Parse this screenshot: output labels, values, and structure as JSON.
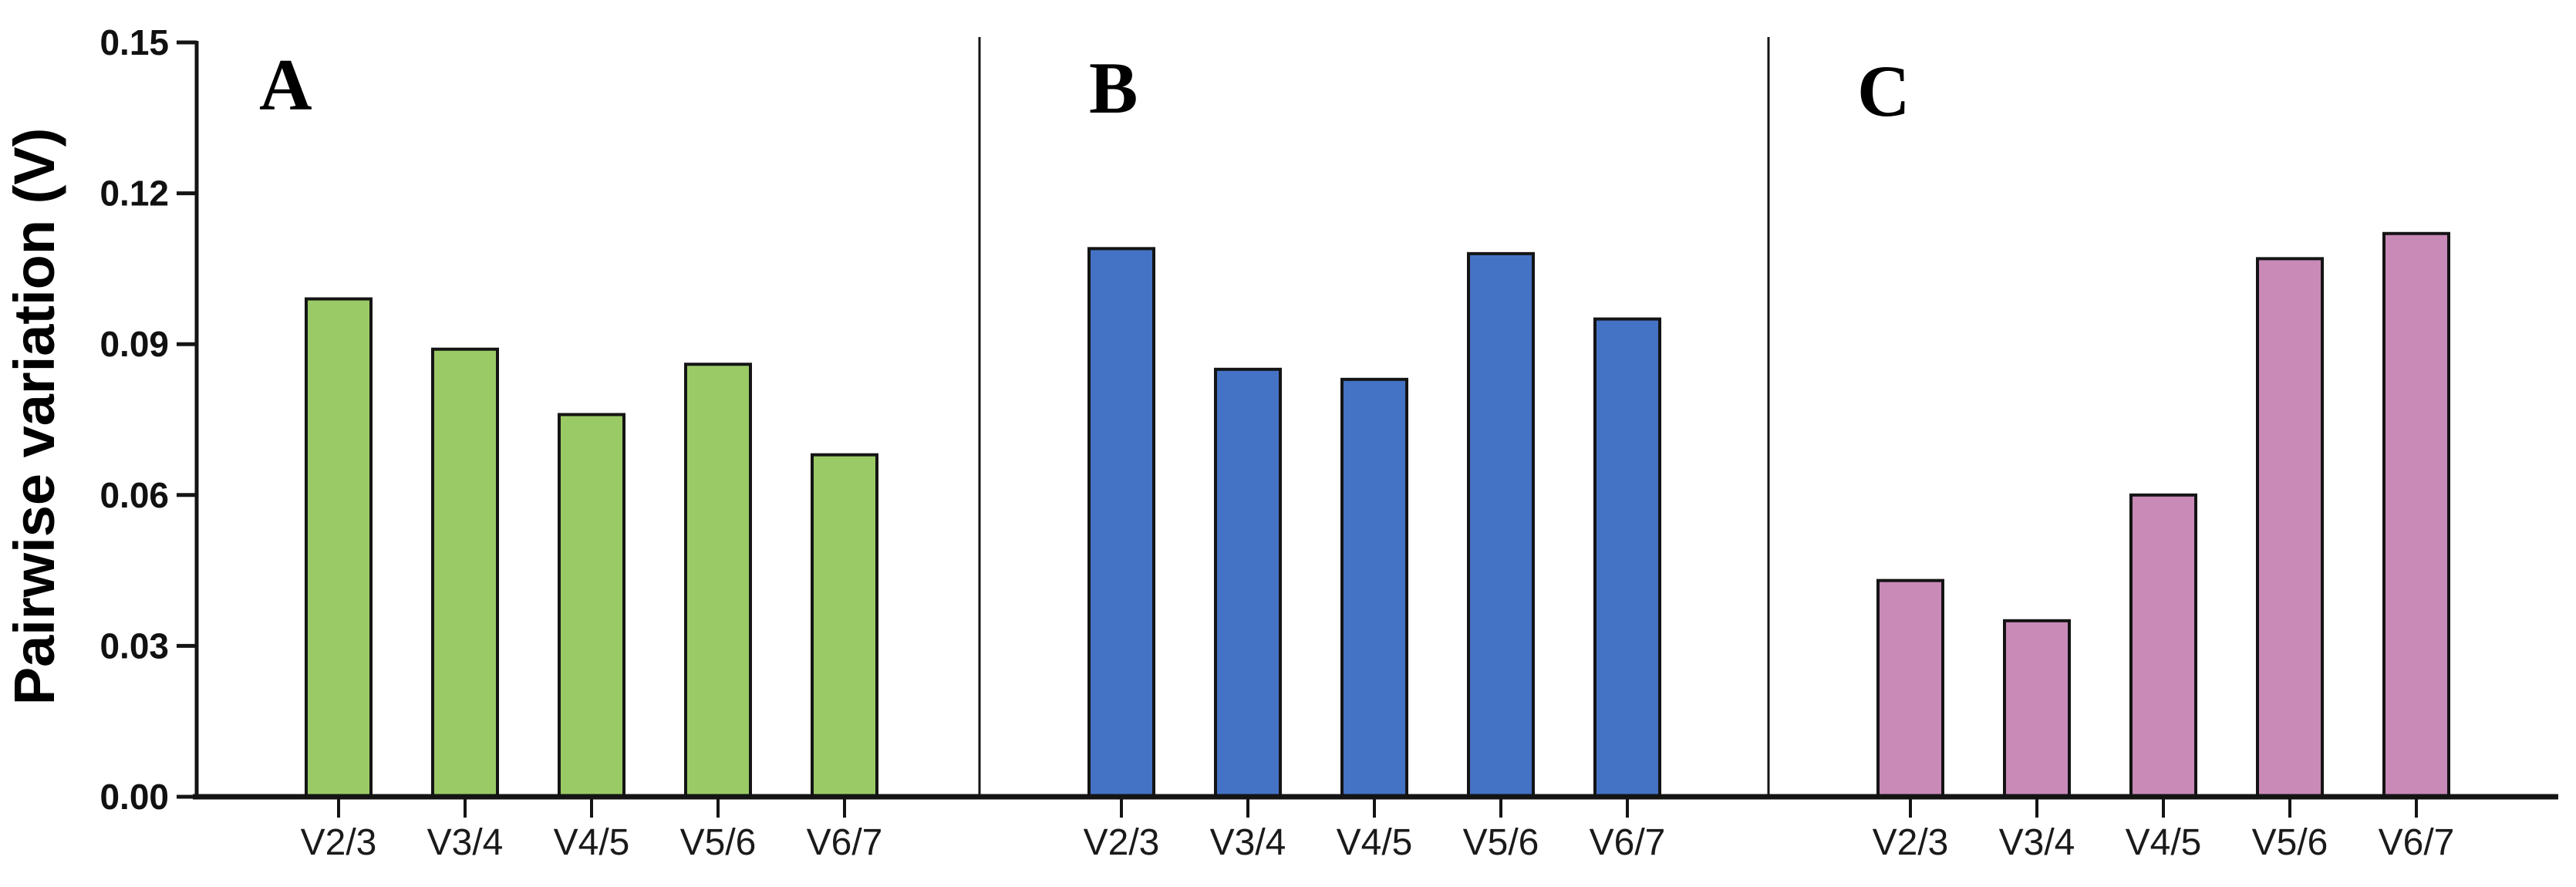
{
  "figure": {
    "background": "#ffffff",
    "axis_color": "#141414",
    "bar_edge_color": "#141414"
  },
  "chart_data": {
    "type": "bar",
    "title": "",
    "xlabel": "",
    "ylabel": "Pairwise variation (V)",
    "ylim": [
      0,
      0.15
    ],
    "yticks": [
      0.0,
      0.03,
      0.06,
      0.09,
      0.12,
      0.15
    ],
    "ytick_labels": [
      "0.00",
      "0.03",
      "0.06",
      "0.09",
      "0.12",
      "0.15"
    ],
    "grid": false,
    "legend_position": "none",
    "categories": [
      "V2/3",
      "V3/4",
      "V4/5",
      "V5/6",
      "V6/7"
    ],
    "panels": [
      {
        "label": "A",
        "color": "#9ACA66",
        "series_name": "Panel A",
        "values": [
          0.099,
          0.089,
          0.076,
          0.086,
          0.068
        ]
      },
      {
        "label": "B",
        "color": "#4472C4",
        "series_name": "Panel B",
        "values": [
          0.109,
          0.085,
          0.083,
          0.108,
          0.095
        ]
      },
      {
        "label": "C",
        "color": "#C98AB8",
        "series_name": "Panel C",
        "values": [
          0.043,
          0.035,
          0.06,
          0.107,
          0.112
        ]
      }
    ]
  }
}
